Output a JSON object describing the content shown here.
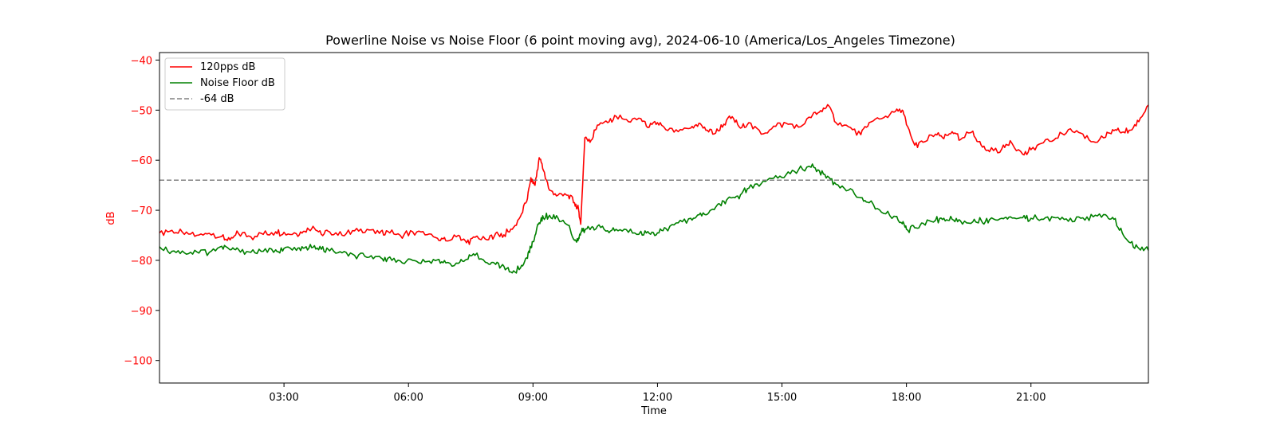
{
  "chart_data": {
    "type": "line",
    "title": "Powerline Noise vs Noise Floor (6 point moving avg), 2024-06-10 (America/Los_Angeles Timezone)",
    "xlabel": "Time",
    "ylabel": "dB",
    "x_unit": "hours",
    "xlim": [
      0,
      23.83
    ],
    "ylim": [
      -104.5,
      -38.5
    ],
    "x_ticks": [
      3,
      6,
      9,
      12,
      15,
      18,
      21
    ],
    "x_tick_labels": [
      "03:00",
      "06:00",
      "09:00",
      "12:00",
      "15:00",
      "18:00",
      "21:00"
    ],
    "y_ticks": [
      -40,
      -50,
      -60,
      -70,
      -80,
      -90,
      -100
    ],
    "y_tick_labels": [
      "−40",
      "−50",
      "−60",
      "−70",
      "−80",
      "−90",
      "−100"
    ],
    "ylabel_color": "#ff0000",
    "ytick_color": "#ff0000",
    "grid": false,
    "legend_position": "top-left",
    "series": [
      {
        "name": "120pps dB",
        "color": "#ff0000",
        "style": "solid",
        "points": [
          [
            0.0,
            -74.5
          ],
          [
            0.3,
            -74.0
          ],
          [
            0.6,
            -74.8
          ],
          [
            0.9,
            -75.0
          ],
          [
            1.2,
            -74.6
          ],
          [
            1.5,
            -75.2
          ],
          [
            1.7,
            -75.9
          ],
          [
            1.9,
            -74.6
          ],
          [
            2.2,
            -75.3
          ],
          [
            2.5,
            -74.8
          ],
          [
            2.8,
            -74.3
          ],
          [
            3.0,
            -74.4
          ],
          [
            3.3,
            -74.7
          ],
          [
            3.5,
            -74.2
          ],
          [
            3.7,
            -73.2
          ],
          [
            3.9,
            -74.8
          ],
          [
            4.1,
            -74.3
          ],
          [
            4.4,
            -75.0
          ],
          [
            4.7,
            -74.1
          ],
          [
            5.0,
            -73.8
          ],
          [
            5.3,
            -74.6
          ],
          [
            5.5,
            -74.2
          ],
          [
            5.8,
            -75.0
          ],
          [
            6.1,
            -74.3
          ],
          [
            6.4,
            -74.9
          ],
          [
            6.7,
            -75.6
          ],
          [
            6.9,
            -76.1
          ],
          [
            7.2,
            -75.0
          ],
          [
            7.4,
            -76.5
          ],
          [
            7.6,
            -75.4
          ],
          [
            7.9,
            -75.9
          ],
          [
            8.1,
            -74.6
          ],
          [
            8.3,
            -74.9
          ],
          [
            8.5,
            -73.8
          ],
          [
            8.7,
            -71.2
          ],
          [
            8.85,
            -68.2
          ],
          [
            8.95,
            -63.5
          ],
          [
            9.05,
            -65.0
          ],
          [
            9.15,
            -59.5
          ],
          [
            9.25,
            -62.0
          ],
          [
            9.4,
            -66.0
          ],
          [
            9.6,
            -67.0
          ],
          [
            9.85,
            -67.0
          ],
          [
            10.0,
            -68.5
          ],
          [
            10.1,
            -70.0
          ],
          [
            10.15,
            -72.8
          ],
          [
            10.25,
            -55.5
          ],
          [
            10.4,
            -56.0
          ],
          [
            10.55,
            -53.0
          ],
          [
            10.8,
            -52.5
          ],
          [
            11.0,
            -51.2
          ],
          [
            11.3,
            -52.3
          ],
          [
            11.6,
            -51.7
          ],
          [
            11.8,
            -53.4
          ],
          [
            12.0,
            -52.5
          ],
          [
            12.2,
            -53.9
          ],
          [
            12.5,
            -54.3
          ],
          [
            12.8,
            -53.6
          ],
          [
            13.0,
            -52.6
          ],
          [
            13.2,
            -54.0
          ],
          [
            13.4,
            -54.6
          ],
          [
            13.6,
            -52.8
          ],
          [
            13.8,
            -51.3
          ],
          [
            14.0,
            -53.6
          ],
          [
            14.2,
            -52.5
          ],
          [
            14.5,
            -54.8
          ],
          [
            14.8,
            -53.2
          ],
          [
            15.1,
            -52.6
          ],
          [
            15.4,
            -53.4
          ],
          [
            15.7,
            -51.5
          ],
          [
            15.9,
            -50.4
          ],
          [
            16.1,
            -48.9
          ],
          [
            16.3,
            -52.5
          ],
          [
            16.6,
            -53.3
          ],
          [
            16.9,
            -54.9
          ],
          [
            17.1,
            -52.5
          ],
          [
            17.4,
            -51.7
          ],
          [
            17.7,
            -50.4
          ],
          [
            17.9,
            -50.0
          ],
          [
            18.0,
            -52.9
          ],
          [
            18.2,
            -57.0
          ],
          [
            18.4,
            -56.4
          ],
          [
            18.7,
            -54.8
          ],
          [
            18.9,
            -55.7
          ],
          [
            19.1,
            -54.3
          ],
          [
            19.3,
            -55.9
          ],
          [
            19.6,
            -54.2
          ],
          [
            19.8,
            -57.0
          ],
          [
            20.0,
            -58.3
          ],
          [
            20.3,
            -57.7
          ],
          [
            20.5,
            -56.1
          ],
          [
            20.8,
            -58.8
          ],
          [
            21.0,
            -57.9
          ],
          [
            21.3,
            -56.5
          ],
          [
            21.6,
            -55.6
          ],
          [
            21.9,
            -53.9
          ],
          [
            22.2,
            -54.6
          ],
          [
            22.5,
            -56.3
          ],
          [
            22.8,
            -55.4
          ],
          [
            23.0,
            -54.1
          ],
          [
            23.2,
            -54.4
          ],
          [
            23.4,
            -54.0
          ],
          [
            23.6,
            -52.3
          ],
          [
            23.83,
            -49.0
          ]
        ]
      },
      {
        "name": "Noise Floor dB",
        "color": "#008000",
        "style": "solid",
        "points": [
          [
            0.0,
            -77.3
          ],
          [
            0.3,
            -78.2
          ],
          [
            0.6,
            -78.5
          ],
          [
            0.9,
            -78.3
          ],
          [
            1.2,
            -78.4
          ],
          [
            1.5,
            -77.2
          ],
          [
            1.7,
            -77.9
          ],
          [
            1.9,
            -77.8
          ],
          [
            2.2,
            -78.4
          ],
          [
            2.5,
            -78.2
          ],
          [
            2.8,
            -77.9
          ],
          [
            3.0,
            -77.6
          ],
          [
            3.3,
            -78.0
          ],
          [
            3.5,
            -77.5
          ],
          [
            3.7,
            -77.4
          ],
          [
            3.9,
            -77.8
          ],
          [
            4.1,
            -78.1
          ],
          [
            4.4,
            -78.5
          ],
          [
            4.7,
            -79.0
          ],
          [
            5.0,
            -79.4
          ],
          [
            5.3,
            -79.2
          ],
          [
            5.5,
            -79.6
          ],
          [
            5.8,
            -80.1
          ],
          [
            6.1,
            -80.0
          ],
          [
            6.4,
            -80.3
          ],
          [
            6.7,
            -79.9
          ],
          [
            6.9,
            -80.5
          ],
          [
            7.2,
            -80.6
          ],
          [
            7.4,
            -79.8
          ],
          [
            7.6,
            -79.0
          ],
          [
            7.9,
            -80.5
          ],
          [
            8.1,
            -80.8
          ],
          [
            8.3,
            -81.2
          ],
          [
            8.5,
            -82.5
          ],
          [
            8.7,
            -81.5
          ],
          [
            8.85,
            -79.5
          ],
          [
            8.95,
            -77.5
          ],
          [
            9.05,
            -75.0
          ],
          [
            9.15,
            -72.5
          ],
          [
            9.25,
            -71.5
          ],
          [
            9.4,
            -71.0
          ],
          [
            9.6,
            -71.5
          ],
          [
            9.85,
            -73.0
          ],
          [
            10.0,
            -76.0
          ],
          [
            10.1,
            -75.5
          ],
          [
            10.15,
            -74.5
          ],
          [
            10.25,
            -74.0
          ],
          [
            10.4,
            -73.5
          ],
          [
            10.55,
            -73.2
          ],
          [
            10.8,
            -74.1
          ],
          [
            11.0,
            -73.8
          ],
          [
            11.3,
            -74.4
          ],
          [
            11.6,
            -74.2
          ],
          [
            11.8,
            -74.6
          ],
          [
            12.0,
            -74.5
          ],
          [
            12.2,
            -73.6
          ],
          [
            12.5,
            -72.5
          ],
          [
            12.8,
            -71.6
          ],
          [
            13.0,
            -70.9
          ],
          [
            13.2,
            -70.8
          ],
          [
            13.4,
            -69.4
          ],
          [
            13.6,
            -68.2
          ],
          [
            13.8,
            -67.5
          ],
          [
            14.0,
            -66.9
          ],
          [
            14.2,
            -65.6
          ],
          [
            14.5,
            -64.7
          ],
          [
            14.8,
            -63.6
          ],
          [
            15.1,
            -62.9
          ],
          [
            15.4,
            -61.9
          ],
          [
            15.7,
            -61.4
          ],
          [
            15.9,
            -62.1
          ],
          [
            16.1,
            -63.2
          ],
          [
            16.3,
            -64.8
          ],
          [
            16.6,
            -66.0
          ],
          [
            16.9,
            -67.5
          ],
          [
            17.1,
            -68.5
          ],
          [
            17.4,
            -70.4
          ],
          [
            17.7,
            -71.2
          ],
          [
            17.9,
            -72.7
          ],
          [
            18.0,
            -73.8
          ],
          [
            18.2,
            -73.5
          ],
          [
            18.4,
            -72.6
          ],
          [
            18.7,
            -72.0
          ],
          [
            18.9,
            -71.6
          ],
          [
            19.1,
            -71.8
          ],
          [
            19.3,
            -72.1
          ],
          [
            19.6,
            -72.3
          ],
          [
            19.8,
            -72.0
          ],
          [
            20.0,
            -71.9
          ],
          [
            20.3,
            -71.6
          ],
          [
            20.5,
            -71.3
          ],
          [
            20.8,
            -71.5
          ],
          [
            21.0,
            -71.6
          ],
          [
            21.3,
            -71.8
          ],
          [
            21.6,
            -71.5
          ],
          [
            21.9,
            -72.2
          ],
          [
            22.2,
            -71.6
          ],
          [
            22.5,
            -71.3
          ],
          [
            22.8,
            -70.9
          ],
          [
            23.0,
            -71.8
          ],
          [
            23.2,
            -74.5
          ],
          [
            23.4,
            -76.5
          ],
          [
            23.6,
            -77.6
          ],
          [
            23.83,
            -78.0
          ]
        ]
      },
      {
        "name": "-64 dB",
        "color": "#808080",
        "style": "dashed",
        "points": [
          [
            0.0,
            -64
          ],
          [
            23.83,
            -64
          ]
        ]
      }
    ]
  }
}
